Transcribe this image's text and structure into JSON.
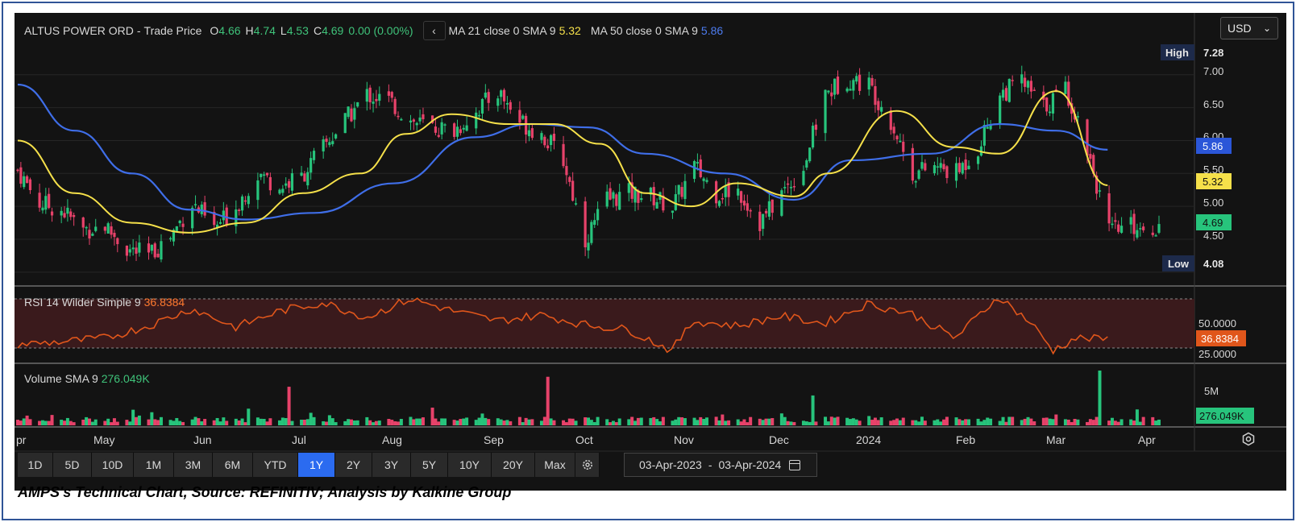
{
  "header": {
    "instrument": "ALTUS POWER ORD",
    "sep": "-",
    "mode": "Trade Price",
    "o_label": "O",
    "o_val": "4.66",
    "h_label": "H",
    "h_val": "4.74",
    "l_label": "L",
    "l_val": "4.53",
    "c_label": "C",
    "c_val": "4.69",
    "change": "0.00 (0.00%)",
    "ma21_label": "MA 21 close 0 SMA 9",
    "ma21_val": "5.32",
    "ma50_label": "MA 50 close 0 SMA 9",
    "ma50_val": "5.86",
    "collapse_glyph": "‹"
  },
  "currency": {
    "value": "USD",
    "chevron": "⌄"
  },
  "price_axis": {
    "ticks": [
      "7.00",
      "6.50",
      "6.00",
      "5.50",
      "5.00",
      "4.50"
    ],
    "high_label": "High",
    "high_val": "7.28",
    "low_label": "Low",
    "low_val": "4.08",
    "ma50_badge": "5.86",
    "ma21_badge": "5.32",
    "last_badge": "4.69"
  },
  "rsi": {
    "label": "RSI 14 Wilder Simple 9",
    "value": "36.8384",
    "ticks": [
      "50.0000",
      "25.0000"
    ],
    "badge": "36.8384"
  },
  "volume": {
    "label": "Volume SMA 9",
    "value": "276.049K",
    "tick": "5M",
    "badge": "276.049K"
  },
  "x_axis": {
    "labels": [
      "pr",
      "May",
      "Jun",
      "Jul",
      "Aug",
      "Sep",
      "Oct",
      "Nov",
      "Dec",
      "2024",
      "Feb",
      "Mar",
      "Apr"
    ]
  },
  "toolbar": {
    "ranges": [
      "1D",
      "5D",
      "10D",
      "1M",
      "3M",
      "6M",
      "YTD",
      "1Y",
      "2Y",
      "3Y",
      "5Y",
      "10Y",
      "20Y",
      "Max"
    ],
    "active": "1Y",
    "date_from": "03-Apr-2023",
    "date_sep": "-",
    "date_to": "03-Apr-2024"
  },
  "caption": "AMPS's Technical Chart, Source: REFINITIV; Analysis by Kalkine Group",
  "colors": {
    "up": "#27c47c",
    "down": "#e7426a",
    "ma21": "#f5e04a",
    "ma50": "#3f6ee8",
    "rsi": "#e0561b",
    "background": "#131313",
    "frame": "#2f5496"
  },
  "chart_data": [
    {
      "type": "candlestick",
      "title": "ALTUS POWER ORD - Trade Price",
      "x_range": [
        "2023-04-03",
        "2024-04-03"
      ],
      "ylim": [
        3.9,
        7.45
      ],
      "high": 7.28,
      "low": 4.08,
      "last": {
        "open": 4.66,
        "high": 4.74,
        "low": 4.53,
        "close": 4.69
      },
      "close_series": [
        {
          "date": "2023-04-03",
          "close": 5.55
        },
        {
          "date": "2023-04-10",
          "close": 5.05
        },
        {
          "date": "2023-04-17",
          "close": 4.95
        },
        {
          "date": "2023-04-24",
          "close": 4.65
        },
        {
          "date": "2023-05-01",
          "close": 4.7
        },
        {
          "date": "2023-05-08",
          "close": 4.35
        },
        {
          "date": "2023-05-15",
          "close": 4.25
        },
        {
          "date": "2023-05-22",
          "close": 4.55
        },
        {
          "date": "2023-05-29",
          "close": 5.05
        },
        {
          "date": "2023-06-05",
          "close": 4.65
        },
        {
          "date": "2023-06-12",
          "close": 5.0
        },
        {
          "date": "2023-06-19",
          "close": 5.5
        },
        {
          "date": "2023-06-26",
          "close": 5.3
        },
        {
          "date": "2023-07-03",
          "close": 5.45
        },
        {
          "date": "2023-07-10",
          "close": 5.9
        },
        {
          "date": "2023-07-17",
          "close": 6.3
        },
        {
          "date": "2023-07-24",
          "close": 6.7
        },
        {
          "date": "2023-07-31",
          "close": 6.6
        },
        {
          "date": "2023-08-07",
          "close": 6.3
        },
        {
          "date": "2023-08-14",
          "close": 6.2
        },
        {
          "date": "2023-08-21",
          "close": 6.15
        },
        {
          "date": "2023-08-28",
          "close": 6.45
        },
        {
          "date": "2023-09-04",
          "close": 6.75
        },
        {
          "date": "2023-09-11",
          "close": 6.3
        },
        {
          "date": "2023-09-18",
          "close": 6.1
        },
        {
          "date": "2023-09-25",
          "close": 5.7
        },
        {
          "date": "2023-10-02",
          "close": 4.5
        },
        {
          "date": "2023-10-09",
          "close": 5.1
        },
        {
          "date": "2023-10-16",
          "close": 5.2
        },
        {
          "date": "2023-10-23",
          "close": 5.15
        },
        {
          "date": "2023-10-30",
          "close": 5.0
        },
        {
          "date": "2023-11-06",
          "close": 5.6
        },
        {
          "date": "2023-11-13",
          "close": 5.2
        },
        {
          "date": "2023-11-20",
          "close": 5.25
        },
        {
          "date": "2023-11-27",
          "close": 4.75
        },
        {
          "date": "2023-12-04",
          "close": 5.2
        },
        {
          "date": "2023-12-11",
          "close": 5.6
        },
        {
          "date": "2023-12-18",
          "close": 6.7
        },
        {
          "date": "2023-12-25",
          "close": 6.95
        },
        {
          "date": "2024-01-01",
          "close": 6.85
        },
        {
          "date": "2024-01-08",
          "close": 6.3
        },
        {
          "date": "2024-01-15",
          "close": 5.5
        },
        {
          "date": "2024-01-22",
          "close": 5.6
        },
        {
          "date": "2024-01-29",
          "close": 5.5
        },
        {
          "date": "2024-02-05",
          "close": 5.9
        },
        {
          "date": "2024-02-12",
          "close": 6.7
        },
        {
          "date": "2024-02-19",
          "close": 6.9
        },
        {
          "date": "2024-02-26",
          "close": 6.5
        },
        {
          "date": "2024-03-04",
          "close": 6.8
        },
        {
          "date": "2024-03-11",
          "close": 5.9
        },
        {
          "date": "2024-03-18",
          "close": 4.6
        },
        {
          "date": "2024-03-25",
          "close": 4.7
        },
        {
          "date": "2024-04-03",
          "close": 4.69
        }
      ]
    },
    {
      "type": "line",
      "series": [
        {
          "name": "MA 21 close 0 SMA 9",
          "last": 5.32,
          "values": [
            [
              0,
              6.0
            ],
            [
              0.05,
              5.2
            ],
            [
              0.1,
              4.75
            ],
            [
              0.15,
              4.6
            ],
            [
              0.2,
              4.75
            ],
            [
              0.25,
              5.2
            ],
            [
              0.3,
              5.5
            ],
            [
              0.34,
              6.1
            ],
            [
              0.38,
              6.4
            ],
            [
              0.43,
              6.25
            ],
            [
              0.47,
              6.25
            ],
            [
              0.51,
              5.95
            ],
            [
              0.55,
              5.2
            ],
            [
              0.59,
              5.0
            ],
            [
              0.63,
              5.35
            ],
            [
              0.68,
              5.15
            ],
            [
              0.71,
              5.5
            ],
            [
              0.77,
              6.45
            ],
            [
              0.82,
              5.9
            ],
            [
              0.86,
              5.8
            ],
            [
              0.91,
              6.75
            ],
            [
              0.955,
              5.32
            ]
          ]
        },
        {
          "name": "MA 50 close 0 SMA 9",
          "last": 5.86,
          "values": [
            [
              0,
              6.85
            ],
            [
              0.05,
              6.15
            ],
            [
              0.1,
              5.5
            ],
            [
              0.15,
              4.95
            ],
            [
              0.2,
              4.8
            ],
            [
              0.26,
              4.9
            ],
            [
              0.33,
              5.35
            ],
            [
              0.4,
              6.05
            ],
            [
              0.45,
              6.25
            ],
            [
              0.5,
              6.2
            ],
            [
              0.55,
              5.8
            ],
            [
              0.62,
              5.5
            ],
            [
              0.68,
              5.1
            ],
            [
              0.73,
              5.7
            ],
            [
              0.8,
              5.8
            ],
            [
              0.86,
              6.25
            ],
            [
              0.91,
              6.15
            ],
            [
              0.955,
              5.86
            ]
          ]
        }
      ]
    },
    {
      "type": "line",
      "title": "RSI 14 Wilder Simple 9",
      "last": 36.8384,
      "reference_lines": [
        70,
        30
      ],
      "values": [
        [
          0,
          33
        ],
        [
          0.04,
          35
        ],
        [
          0.08,
          38
        ],
        [
          0.12,
          48
        ],
        [
          0.16,
          62
        ],
        [
          0.2,
          47
        ],
        [
          0.24,
          60
        ],
        [
          0.28,
          67
        ],
        [
          0.32,
          55
        ],
        [
          0.36,
          70
        ],
        [
          0.4,
          60
        ],
        [
          0.44,
          52
        ],
        [
          0.48,
          57
        ],
        [
          0.52,
          49
        ],
        [
          0.56,
          45
        ],
        [
          0.6,
          28
        ],
        [
          0.62,
          52
        ],
        [
          0.66,
          48
        ],
        [
          0.7,
          56
        ],
        [
          0.74,
          50
        ],
        [
          0.78,
          66
        ],
        [
          0.82,
          58
        ],
        [
          0.86,
          38
        ],
        [
          0.9,
          72
        ],
        [
          0.93,
          50
        ],
        [
          0.95,
          28
        ],
        [
          0.97,
          38
        ],
        [
          1.0,
          37
        ]
      ]
    },
    {
      "type": "bar",
      "title": "Volume SMA 9",
      "last": 276049,
      "notable_spikes": [
        {
          "date": "2023-06-29",
          "volume": 3100000
        },
        {
          "date": "2023-09-20",
          "volume": 3900000
        },
        {
          "date": "2023-12-14",
          "volume": 2400000
        },
        {
          "date": "2024-03-15",
          "volume": 4400000
        }
      ]
    }
  ]
}
